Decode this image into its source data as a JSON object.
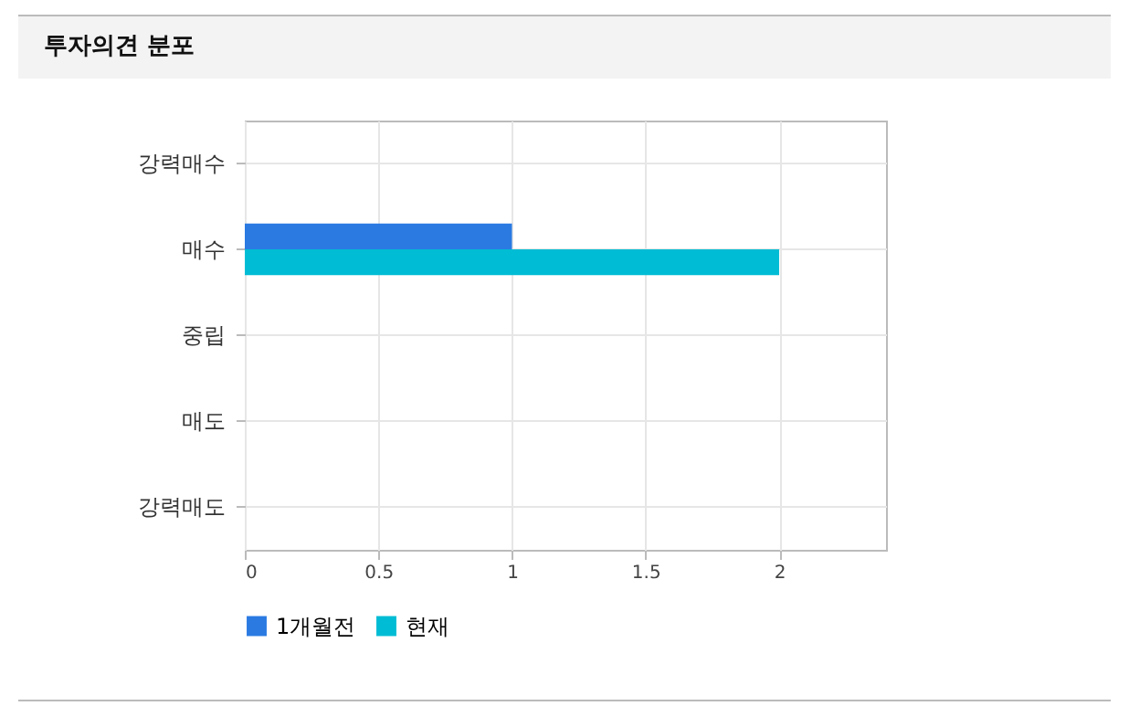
{
  "chart_data": {
    "type": "bar",
    "orientation": "horizontal",
    "title": "투자의견 분포",
    "categories": [
      "강력매수",
      "매수",
      "중립",
      "매도",
      "강력매도"
    ],
    "series": [
      {
        "name": "1개월전",
        "color": "#2a7ae2",
        "values": [
          0,
          1,
          0,
          0,
          0
        ]
      },
      {
        "name": "현재",
        "color": "#00bcd4",
        "values": [
          0,
          2,
          0,
          0,
          0
        ]
      }
    ],
    "xlim": [
      0,
      2.4
    ],
    "xticks": [
      0,
      0.5,
      1,
      1.5,
      2
    ],
    "grid": true,
    "legend": "bottom"
  }
}
